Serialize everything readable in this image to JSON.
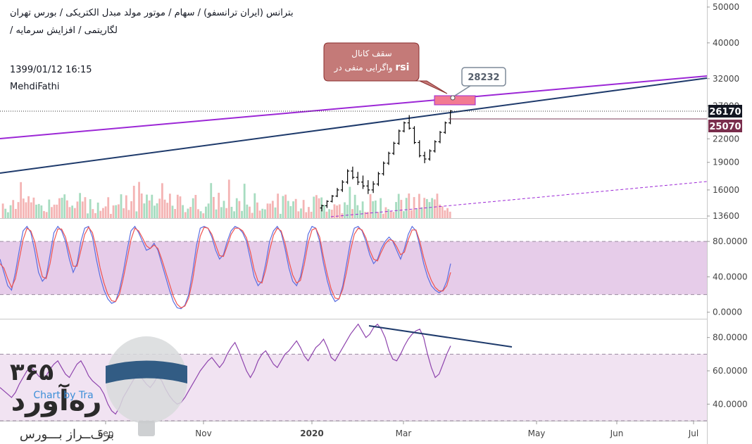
{
  "header": {
    "title_line1": "بترانس (ایران ترانسفو) / سهام / موتور مولد مبدل الکتریکی / بورس تهران",
    "title_line2": "لگاریتمی / افزایش سرمایه /",
    "datetime": "1399/01/12 16:15",
    "author": "MehdiFathi"
  },
  "watermark": {
    "brand_digits": "۳۶۵",
    "brand_name": "رەآورد",
    "tagline": "برف‌ــراز بـــورس",
    "chart_credit": "Chart by Tra"
  },
  "colors": {
    "up": "#26a69a",
    "down": "#ef5350",
    "candle": "#000000",
    "ceiling_line": "#9c27d6",
    "trend_line": "#1e3a6b",
    "stoch_k": "#5b6ee1",
    "stoch_d": "#ef5350",
    "stoch_band": "#e6cce9",
    "rsi_band": "#f1e3f2",
    "rsi_line": "#8e44ad"
  },
  "chart_data": [
    {
      "type": "line",
      "name": "price",
      "scale": "log",
      "x_ticks": [
        "Sep",
        "Nov",
        "2020",
        "Mar",
        "May",
        "Jun",
        "Jul"
      ],
      "y_ticks": [
        13600,
        16000,
        19000,
        22000,
        27000,
        32000,
        40000,
        50000
      ],
      "ylim": [
        13600,
        50000
      ],
      "grid": false,
      "price_labels": {
        "last": "26170",
        "prior": "25070"
      },
      "annotations": {
        "callout_line1": "سقف کانال",
        "callout_line2_rsi": "rsi",
        "callout_line2_rest": "واگرایی منفی در",
        "target_value": "28232"
      },
      "lines": {
        "ceiling": {
          "from": {
            "bar": 0,
            "value": 24500
          },
          "to": {
            "bar": 206,
            "value": 32400
          }
        },
        "trend": {
          "from": {
            "bar": 0,
            "value": 18000
          },
          "to": {
            "bar": 206,
            "value": 31800
          }
        },
        "lower_dashed": {
          "from": {
            "bar": 122,
            "value": 13600
          },
          "to": {
            "bar": 206,
            "value": 16800
          }
        }
      },
      "candles": [
        {
          "bar": 124,
          "o": 14300,
          "h": 14600,
          "l": 14000,
          "c": 14500
        },
        {
          "bar": 126,
          "o": 14500,
          "h": 15000,
          "l": 14300,
          "c": 14900
        },
        {
          "bar": 128,
          "o": 14900,
          "h": 15500,
          "l": 14800,
          "c": 15400
        },
        {
          "bar": 130,
          "o": 15400,
          "h": 16200,
          "l": 15300,
          "c": 16000
        },
        {
          "bar": 132,
          "o": 16000,
          "h": 17000,
          "l": 15800,
          "c": 16800
        },
        {
          "bar": 134,
          "o": 16800,
          "h": 18200,
          "l": 16600,
          "c": 18000
        },
        {
          "bar": 136,
          "o": 18000,
          "h": 18500,
          "l": 17100,
          "c": 17300
        },
        {
          "bar": 138,
          "o": 17300,
          "h": 17900,
          "l": 16500,
          "c": 16800
        },
        {
          "bar": 140,
          "o": 16800,
          "h": 17500,
          "l": 16100,
          "c": 16400
        },
        {
          "bar": 142,
          "o": 16400,
          "h": 17000,
          "l": 15600,
          "c": 16000
        },
        {
          "bar": 144,
          "o": 16000,
          "h": 16900,
          "l": 15700,
          "c": 16600
        },
        {
          "bar": 146,
          "o": 16600,
          "h": 17900,
          "l": 16400,
          "c": 17700
        },
        {
          "bar": 148,
          "o": 17700,
          "h": 19100,
          "l": 17500,
          "c": 18900
        },
        {
          "bar": 150,
          "o": 18900,
          "h": 20300,
          "l": 18700,
          "c": 20100
        },
        {
          "bar": 152,
          "o": 20100,
          "h": 21600,
          "l": 19900,
          "c": 21400
        },
        {
          "bar": 154,
          "o": 21400,
          "h": 23300,
          "l": 21200,
          "c": 23100
        },
        {
          "bar": 156,
          "o": 23100,
          "h": 24500,
          "l": 22900,
          "c": 24300
        },
        {
          "bar": 158,
          "o": 24300,
          "h": 25500,
          "l": 23300,
          "c": 23500
        },
        {
          "bar": 160,
          "o": 23500,
          "h": 23800,
          "l": 21300,
          "c": 21500
        },
        {
          "bar": 162,
          "o": 21500,
          "h": 21800,
          "l": 19600,
          "c": 19800
        },
        {
          "bar": 164,
          "o": 19800,
          "h": 20300,
          "l": 18900,
          "c": 19400
        },
        {
          "bar": 166,
          "o": 19400,
          "h": 20600,
          "l": 19200,
          "c": 20400
        },
        {
          "bar": 168,
          "o": 20400,
          "h": 21800,
          "l": 20200,
          "c": 21600
        },
        {
          "bar": 170,
          "o": 21600,
          "h": 23100,
          "l": 21400,
          "c": 22900
        },
        {
          "bar": 172,
          "o": 22900,
          "h": 24500,
          "l": 22700,
          "c": 24300
        },
        {
          "bar": 174,
          "o": 24300,
          "h": 26300,
          "l": 24100,
          "c": 26170
        }
      ],
      "volume_hint": "bars"
    },
    {
      "type": "line",
      "name": "stochastic",
      "y_ticks": [
        "80.0000",
        "40.0000",
        "0.0000"
      ],
      "ylim": [
        -5,
        100
      ],
      "band": [
        20,
        80
      ],
      "k": [
        60,
        45,
        30,
        25,
        45,
        70,
        92,
        97,
        90,
        70,
        45,
        35,
        40,
        65,
        90,
        97,
        92,
        80,
        60,
        45,
        55,
        80,
        95,
        97,
        85,
        60,
        40,
        25,
        15,
        10,
        12,
        25,
        45,
        70,
        92,
        97,
        90,
        80,
        70,
        72,
        78,
        70,
        55,
        40,
        25,
        12,
        5,
        4,
        8,
        20,
        45,
        75,
        95,
        97,
        95,
        85,
        70,
        60,
        65,
        80,
        92,
        97,
        95,
        90,
        80,
        60,
        40,
        30,
        35,
        55,
        80,
        92,
        97,
        90,
        72,
        50,
        35,
        30,
        40,
        62,
        88,
        97,
        95,
        80,
        55,
        35,
        20,
        12,
        15,
        30,
        55,
        80,
        95,
        97,
        92,
        80,
        65,
        55,
        60,
        72,
        80,
        85,
        80,
        70,
        60,
        72,
        88,
        97,
        92,
        75,
        55,
        40,
        30,
        25,
        22,
        25,
        35,
        55
      ],
      "d": [
        55,
        50,
        38,
        28,
        38,
        60,
        82,
        95,
        92,
        80,
        58,
        40,
        38,
        55,
        80,
        94,
        94,
        85,
        68,
        52,
        52,
        70,
        88,
        96,
        90,
        72,
        50,
        33,
        20,
        13,
        12,
        20,
        38,
        60,
        82,
        95,
        92,
        84,
        75,
        72,
        76,
        72,
        60,
        46,
        32,
        18,
        9,
        5,
        7,
        16,
        36,
        64,
        86,
        96,
        95,
        88,
        76,
        64,
        63,
        75,
        88,
        95,
        95,
        92,
        84,
        68,
        48,
        35,
        33,
        48,
        70,
        87,
        95,
        92,
        78,
        58,
        42,
        33,
        36,
        54,
        78,
        93,
        95,
        85,
        62,
        42,
        26,
        16,
        15,
        26,
        46,
        70,
        88,
        95,
        93,
        84,
        70,
        60,
        58,
        68,
        77,
        82,
        81,
        74,
        65,
        68,
        82,
        93,
        93,
        80,
        62,
        47,
        36,
        28,
        24,
        24,
        30,
        45
      ]
    },
    {
      "type": "line",
      "name": "rsi",
      "y_ticks": [
        "80.0000",
        "60.0000",
        "40.0000"
      ],
      "ylim": [
        30,
        90
      ],
      "band": [
        30,
        70
      ],
      "values": [
        50,
        48,
        46,
        44,
        47,
        52,
        56,
        60,
        62,
        60,
        57,
        55,
        57,
        61,
        64,
        66,
        62,
        58,
        56,
        60,
        64,
        66,
        62,
        57,
        54,
        52,
        50,
        46,
        40,
        36,
        34,
        38,
        44,
        48,
        52,
        56,
        58,
        55,
        52,
        50,
        53,
        57,
        54,
        49,
        45,
        42,
        40,
        41,
        44,
        48,
        52,
        56,
        60,
        63,
        66,
        68,
        65,
        62,
        65,
        70,
        74,
        77,
        72,
        66,
        60,
        56,
        60,
        66,
        70,
        72,
        68,
        64,
        62,
        66,
        70,
        72,
        75,
        78,
        74,
        69,
        66,
        70,
        74,
        76,
        79,
        74,
        68,
        66,
        70,
        74,
        78,
        82,
        85,
        88,
        84,
        80,
        82,
        86,
        88,
        85,
        80,
        72,
        67,
        66,
        70,
        75,
        79,
        82,
        84,
        85,
        80,
        70,
        62,
        56,
        58,
        64,
        70,
        75
      ]
    }
  ]
}
